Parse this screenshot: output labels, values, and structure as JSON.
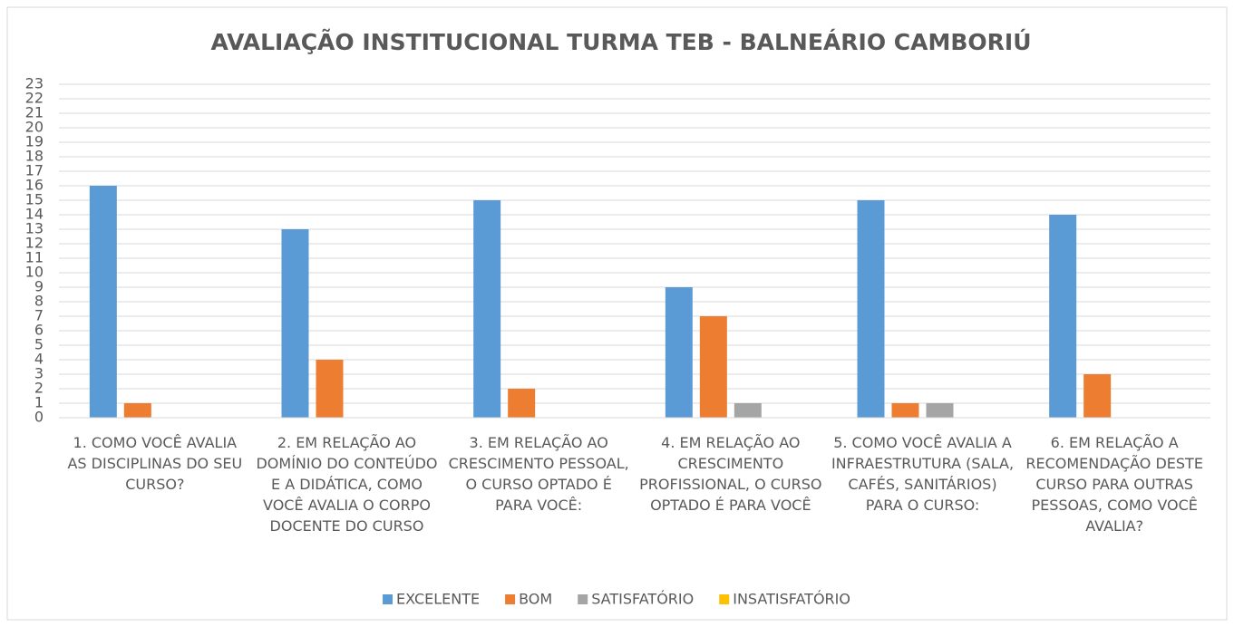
{
  "chart_data": {
    "type": "bar",
    "title": "AVALIAÇÃO INSTITUCIONAL TURMA TEB - BALNEÁRIO CAMBORIÚ",
    "categories": [
      "1. COMO VOCÊ AVALIA AS DISCIPLINAS DO SEU CURSO?",
      "2. EM RELAÇÃO AO DOMÍNIO DO CONTEÚDO E A DIDÁTICA, COMO VOCÊ AVALIA O CORPO DOCENTE DO CURSO",
      "3. EM RELAÇÃO AO CRESCIMENTO PESSOAL, O CURSO OPTADO É PARA VOCÊ:",
      "4. EM RELAÇÃO AO CRESCIMENTO PROFISSIONAL, O CURSO OPTADO É PARA VOCÊ",
      "5. COMO VOCÊ AVALIA A INFRAESTRUTURA (SALA, CAFÉS, SANITÁRIOS) PARA O CURSO:",
      "6. EM RELAÇÃO A RECOMENDAÇÃO DESTE CURSO PARA OUTRAS PESSOAS, COMO VOCÊ AVALIA?"
    ],
    "series": [
      {
        "name": "EXCELENTE",
        "color": "#5b9bd5",
        "values": [
          16,
          13,
          15,
          9,
          15,
          14
        ]
      },
      {
        "name": "BOM",
        "color": "#ed7d31",
        "values": [
          1,
          4,
          2,
          7,
          1,
          3
        ]
      },
      {
        "name": "SATISFATÓRIO",
        "color": "#a5a5a5",
        "values": [
          0,
          0,
          0,
          1,
          1,
          0
        ]
      },
      {
        "name": "INSATISFATÓRIO",
        "color": "#ffc000",
        "values": [
          0,
          0,
          0,
          0,
          0,
          0
        ]
      }
    ],
    "ylim": [
      0,
      23
    ],
    "yticks": [
      0,
      1,
      2,
      3,
      4,
      5,
      6,
      7,
      8,
      9,
      10,
      11,
      12,
      13,
      14,
      15,
      16,
      17,
      18,
      19,
      20,
      21,
      22,
      23
    ],
    "grid": true,
    "legend": "bottom"
  }
}
